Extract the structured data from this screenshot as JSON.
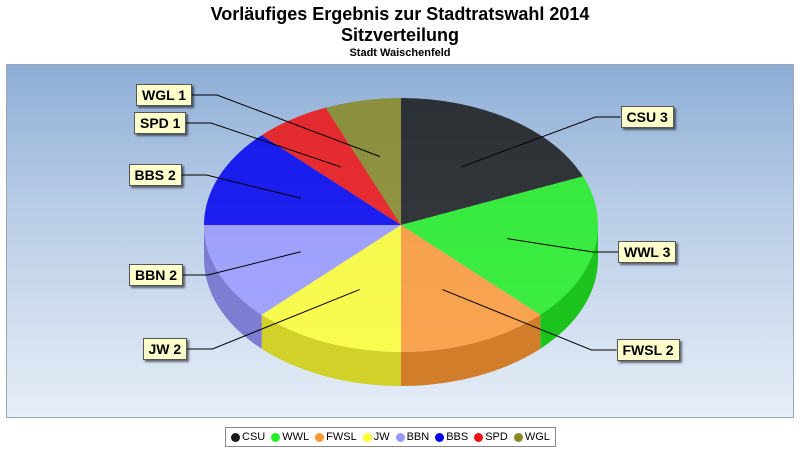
{
  "title_line1": "Vorläufiges Ergebnis zur Stadtratswahl 2014",
  "title_line2": "Sitzverteilung",
  "subtitle": "Stadt Waischenfeld",
  "chart_data": {
    "type": "pie",
    "title": "Vorläufiges Ergebnis zur Stadtratswahl 2014 - Sitzverteilung",
    "subtitle": "Stadt Waischenfeld",
    "categories": [
      "CSU",
      "WWL",
      "FWSL",
      "JW",
      "BBN",
      "BBS",
      "SPD",
      "WGL"
    ],
    "values": [
      3,
      3,
      2,
      2,
      2,
      2,
      1,
      1
    ],
    "colors": [
      "#1a1a1a",
      "#22ee22",
      "#ff9933",
      "#ffff33",
      "#9999ff",
      "#0000ee",
      "#ee1111",
      "#888822"
    ],
    "data_labels": [
      "CSU 3",
      "WWL 3",
      "FWSL 2",
      "JW 2",
      "BBN 2",
      "BBS 2",
      "SPD 1",
      "WGL 1"
    ],
    "legend_position": "bottom-center"
  }
}
